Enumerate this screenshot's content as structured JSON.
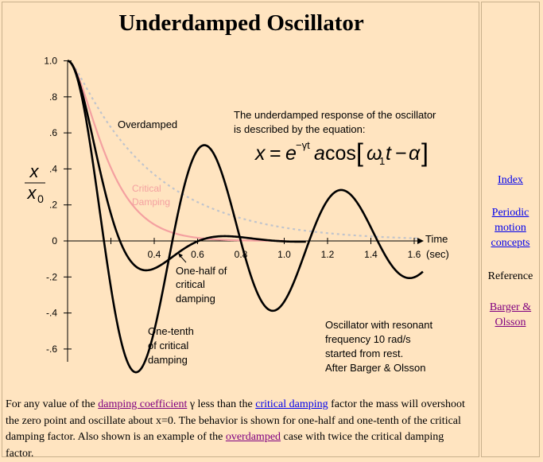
{
  "page": {
    "title": "Underdamped Oscillator"
  },
  "figure": {
    "y_axis_label_top": "x",
    "y_axis_label_bottom": "x",
    "y_axis_label_subscript": "0",
    "x_axis_label": "Time",
    "x_axis_unit": "(sec)",
    "y_ticks": [
      "1.0",
      ".8",
      ".6",
      ".4",
      ".2",
      "0",
      "-.2",
      "-.4",
      "-.6"
    ],
    "x_ticks": [
      "0.4",
      "0.6",
      "0.8",
      "1.0",
      "1.2",
      "1.4",
      "1.6"
    ],
    "label_overdamped": "Overdamped",
    "label_critical_1": "Critical",
    "label_critical_2": "Damping",
    "label_half_1": "One-half of",
    "label_half_2": "critical",
    "label_half_3": "damping",
    "label_tenth_1": "One-tenth",
    "label_tenth_2": "of critical",
    "label_tenth_3": "damping",
    "equation_intro_1": "The underdamped response of the oscillator",
    "equation_intro_2": "is described by the equation:",
    "equation": "x = e^(−γt) a cos[ω₁t − α]",
    "note_1": "Oscillator with resonant",
    "note_2": "frequency 10 rad/s",
    "note_3": "started from rest.",
    "note_4": "After Barger & Olsson",
    "colors": {
      "overdamped": "#c0c4cc",
      "critical": "#f4a0a0",
      "underdamped": "#000000"
    }
  },
  "description": {
    "part1": "For any value of the ",
    "link1": "damping coefficient",
    "part2": " γ less than the ",
    "link2": "critical damping",
    "part3": " factor the mass will overshoot the zero point and oscillate about x=0. The behavior is shown for one-half and one-tenth of the critical damping factor. Also shown is an example of the ",
    "link3": "overdamped",
    "part4": " case with twice the critical damping factor."
  },
  "sidebar": {
    "index": "Index",
    "periodic_1": "Periodic",
    "periodic_2": "motion",
    "periodic_3": "concepts",
    "reference": "Reference",
    "barger_1": "Barger &",
    "barger_2": "Olsson"
  }
}
